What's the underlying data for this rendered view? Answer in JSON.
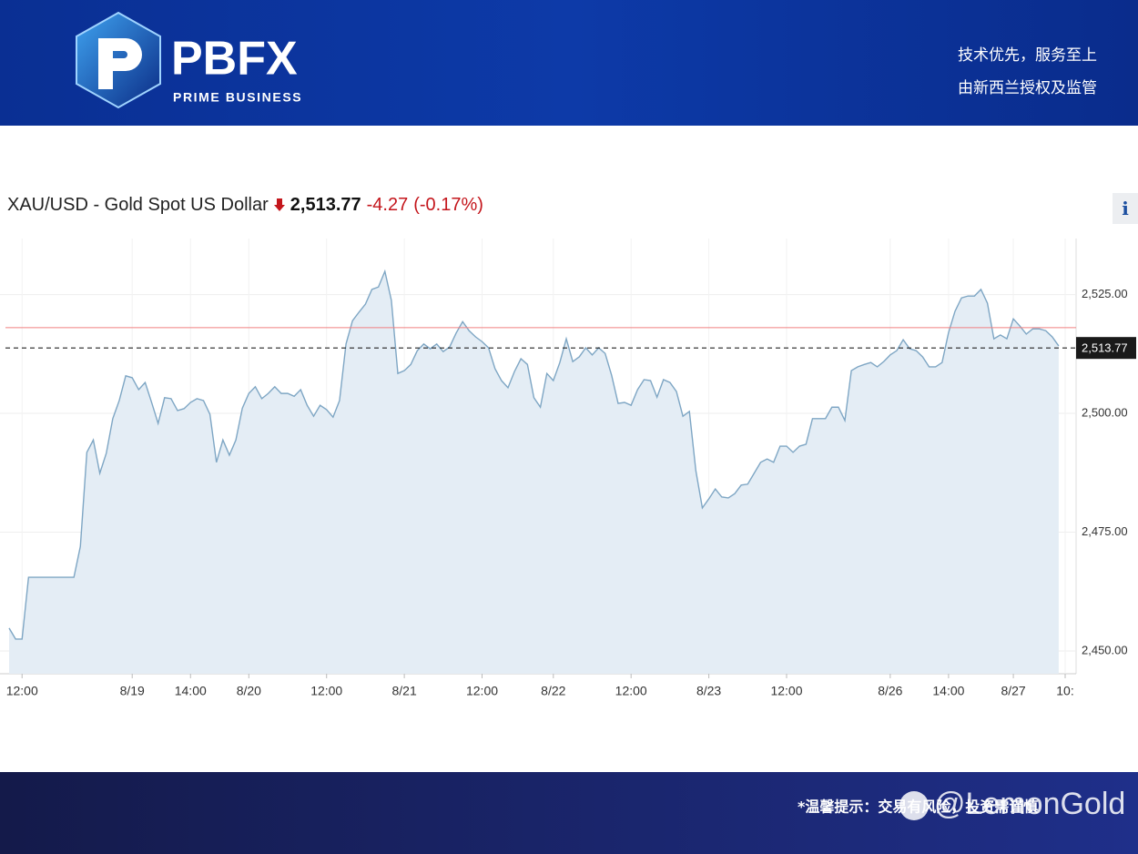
{
  "header": {
    "logo": "PBFX",
    "logo_subtitle": "PRIME BUSINESS",
    "slogan": "技术优先，服务至上",
    "regulation": "由新西兰授权及监管"
  },
  "chart_data": {
    "type": "line",
    "title": "XAU/USD - Gold Spot US Dollar",
    "last": {
      "value": 2513.77,
      "label": "2,513.77"
    },
    "change": -4.27,
    "change_percent": {
      "value": -0.17,
      "label": "(-0.17%)"
    },
    "previous_close": 2518.04,
    "categories": [
      null,
      null,
      "12:00",
      null,
      null,
      null,
      null,
      null,
      null,
      null,
      null,
      null,
      null,
      null,
      null,
      null,
      null,
      null,
      null,
      "8/19",
      null,
      null,
      null,
      null,
      null,
      null,
      null,
      null,
      "14:00",
      null,
      null,
      null,
      null,
      null,
      null,
      null,
      null,
      "8/20",
      null,
      null,
      null,
      null,
      null,
      null,
      null,
      null,
      null,
      null,
      null,
      "12:00",
      null,
      null,
      null,
      null,
      null,
      null,
      null,
      null,
      null,
      null,
      null,
      "8/21",
      null,
      null,
      null,
      null,
      null,
      null,
      null,
      null,
      null,
      null,
      null,
      "12:00",
      null,
      null,
      null,
      null,
      null,
      null,
      null,
      null,
      null,
      null,
      "8/22",
      null,
      null,
      null,
      null,
      null,
      null,
      null,
      null,
      null,
      null,
      null,
      "12:00",
      null,
      null,
      null,
      null,
      null,
      null,
      null,
      null,
      null,
      null,
      null,
      "8/23",
      null,
      null,
      null,
      null,
      null,
      null,
      null,
      null,
      null,
      null,
      null,
      "12:00",
      null,
      null,
      null,
      null,
      null,
      null,
      null,
      null,
      null,
      null,
      null,
      null,
      null,
      null,
      null,
      "8/26",
      null,
      null,
      null,
      null,
      null,
      null,
      null,
      null,
      "14:00",
      null,
      null,
      null,
      null,
      null,
      null,
      null,
      null,
      null,
      "8/27",
      null,
      null,
      null,
      null,
      null,
      null,
      null,
      "10:"
    ],
    "values": [
      2454.8,
      2452.5,
      2452.5,
      2465.5,
      2465.5,
      2465.5,
      2465.5,
      2465.5,
      2465.5,
      2465.5,
      2465.5,
      2472.0,
      2491.8,
      2494.4,
      2487.4,
      2491.6,
      2498.9,
      2502.7,
      2507.9,
      2507.5,
      2505.0,
      2506.5,
      2502.3,
      2497.9,
      2503.3,
      2503.1,
      2500.6,
      2501.0,
      2502.3,
      2503.1,
      2502.7,
      2499.8,
      2489.7,
      2494.4,
      2491.2,
      2494.4,
      2501.1,
      2504.2,
      2505.6,
      2503.1,
      2504.2,
      2505.6,
      2504.2,
      2504.2,
      2503.6,
      2505.0,
      2501.7,
      2499.4,
      2501.7,
      2500.8,
      2499.2,
      2502.7,
      2514.6,
      2519.5,
      2521.3,
      2523.0,
      2526.1,
      2526.6,
      2529.9,
      2523.8,
      2508.4,
      2509.0,
      2510.3,
      2513.2,
      2514.6,
      2513.6,
      2514.6,
      2513.0,
      2514.0,
      2516.9,
      2519.3,
      2517.4,
      2516.1,
      2515.1,
      2513.8,
      2509.4,
      2506.9,
      2505.4,
      2508.8,
      2511.5,
      2510.3,
      2503.3,
      2501.3,
      2508.4,
      2506.9,
      2510.7,
      2515.7,
      2510.9,
      2511.9,
      2513.8,
      2512.3,
      2513.8,
      2512.6,
      2508.0,
      2502.1,
      2502.3,
      2501.7,
      2505.0,
      2507.1,
      2506.9,
      2503.4,
      2507.1,
      2506.5,
      2504.6,
      2499.4,
      2500.4,
      2487.9,
      2480.1,
      2482.0,
      2484.1,
      2482.4,
      2482.2,
      2483.1,
      2484.9,
      2485.1,
      2487.4,
      2489.7,
      2490.4,
      2489.7,
      2493.1,
      2493.1,
      2491.8,
      2493.1,
      2493.5,
      2498.9,
      2498.9,
      2498.9,
      2501.3,
      2501.3,
      2498.5,
      2509.0,
      2509.8,
      2510.3,
      2510.7,
      2509.8,
      2510.9,
      2512.3,
      2513.2,
      2515.5,
      2513.6,
      2513.2,
      2511.9,
      2509.8,
      2509.8,
      2510.7,
      2517.0,
      2521.5,
      2524.3,
      2524.7,
      2524.7,
      2526.1,
      2523.2,
      2515.7,
      2516.5,
      2515.7,
      2519.9,
      2518.4,
      2516.7,
      2517.8,
      2517.8,
      2517.4,
      2516.1,
      2514.2,
      null
    ],
    "color": "#7ea6c4",
    "fill": "#e4edf5",
    "ylim": [
      2445.2,
      2536.8
    ],
    "yticks": [
      {
        "value": 2450,
        "label": "2,450.00"
      },
      {
        "value": 2475,
        "label": "2,475.00"
      },
      {
        "value": 2500,
        "label": "2,500.00"
      },
      {
        "value": 2525,
        "label": "2,525.00"
      }
    ],
    "grid": true
  },
  "info_button": "i",
  "footer": {
    "notice": "*温馨提示：交易有风险，投资需谨慎",
    "watermark": "@LemonGold"
  }
}
